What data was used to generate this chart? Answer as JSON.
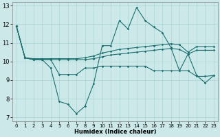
{
  "background_color": "#cce8e8",
  "grid_color": "#aad4d4",
  "line_color": "#1a7070",
  "xlabel": "Humidex (Indice chaleur)",
  "xlim": [
    -0.5,
    23.5
  ],
  "ylim": [
    6.8,
    13.2
  ],
  "yticks": [
    7,
    8,
    9,
    10,
    11,
    12,
    13
  ],
  "xticks": [
    0,
    1,
    2,
    3,
    4,
    5,
    6,
    7,
    8,
    9,
    10,
    11,
    12,
    13,
    14,
    15,
    16,
    17,
    18,
    19,
    20,
    21,
    22,
    23
  ],
  "line_spiky_x": [
    0,
    1,
    2,
    3,
    4,
    5,
    6,
    7,
    8,
    9,
    10,
    11,
    12,
    13,
    14,
    15,
    16,
    17,
    18,
    19,
    20,
    21,
    22,
    23
  ],
  "line_spiky_y": [
    11.9,
    10.2,
    10.1,
    10.1,
    9.65,
    7.85,
    7.7,
    7.2,
    7.6,
    8.8,
    10.85,
    10.85,
    12.2,
    11.75,
    12.9,
    12.2,
    11.85,
    11.55,
    10.75,
    9.5,
    10.4,
    9.25,
    8.85,
    9.25
  ],
  "line_upper_x": [
    0,
    1,
    2,
    3,
    4,
    5,
    6,
    7,
    8,
    9,
    10,
    11,
    12,
    13,
    14,
    15,
    16,
    17,
    18,
    19,
    20,
    21,
    22,
    23
  ],
  "line_upper_y": [
    11.9,
    10.2,
    10.15,
    10.15,
    10.15,
    10.15,
    10.15,
    10.15,
    10.2,
    10.3,
    10.45,
    10.55,
    10.65,
    10.7,
    10.75,
    10.8,
    10.85,
    10.9,
    10.95,
    10.9,
    10.5,
    10.8,
    10.8,
    10.8
  ],
  "line_mid_x": [
    0,
    1,
    2,
    3,
    4,
    5,
    6,
    7,
    8,
    9,
    10,
    11,
    12,
    13,
    14,
    15,
    16,
    17,
    18,
    19,
    20,
    21,
    22,
    23
  ],
  "line_mid_y": [
    11.9,
    10.2,
    10.1,
    10.1,
    10.1,
    9.3,
    9.3,
    9.3,
    9.65,
    9.65,
    9.75,
    9.75,
    9.75,
    9.75,
    9.75,
    9.75,
    9.5,
    9.5,
    9.5,
    9.5,
    9.5,
    9.2,
    9.2,
    9.25
  ],
  "line_lower_x": [
    0,
    1,
    2,
    3,
    4,
    5,
    6,
    7,
    8,
    9,
    10,
    11,
    12,
    13,
    14,
    15,
    16,
    17,
    18,
    19,
    20,
    21,
    22,
    23
  ],
  "line_lower_y": [
    11.9,
    10.2,
    10.1,
    10.1,
    10.1,
    10.1,
    10.1,
    10.1,
    10.1,
    10.15,
    10.25,
    10.35,
    10.4,
    10.45,
    10.5,
    10.55,
    10.6,
    10.65,
    10.7,
    10.65,
    10.4,
    10.6,
    10.6,
    10.6
  ]
}
